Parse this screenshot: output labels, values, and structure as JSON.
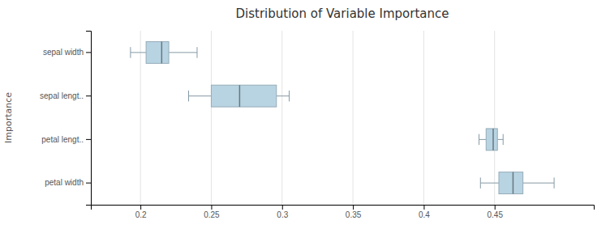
{
  "chart_data": {
    "type": "box",
    "title": "Distribution of Variable Importance",
    "ylabel": "Importance",
    "orientation": "horizontal",
    "color": "#b8d4e3",
    "grid": true,
    "categories": [
      "petal width",
      "petal lengt..",
      "sepal lengt..",
      "sepal width"
    ],
    "boxes": [
      {
        "q1": 0.453,
        "median": 0.463,
        "q3": 0.47,
        "whislo": 0.44,
        "whishi": 0.492
      },
      {
        "q1": 0.444,
        "median": 0.449,
        "q3": 0.452,
        "whislo": 0.439,
        "whishi": 0.456
      },
      {
        "q1": 0.25,
        "median": 0.27,
        "q3": 0.296,
        "whislo": 0.234,
        "whishi": 0.305
      },
      {
        "q1": 0.204,
        "median": 0.215,
        "q3": 0.22,
        "whislo": 0.193,
        "whishi": 0.24
      }
    ],
    "xlim": [
      0.165,
      0.52
    ],
    "xticks": [
      0.2,
      0.25,
      0.3,
      0.35,
      0.4,
      0.45
    ]
  }
}
